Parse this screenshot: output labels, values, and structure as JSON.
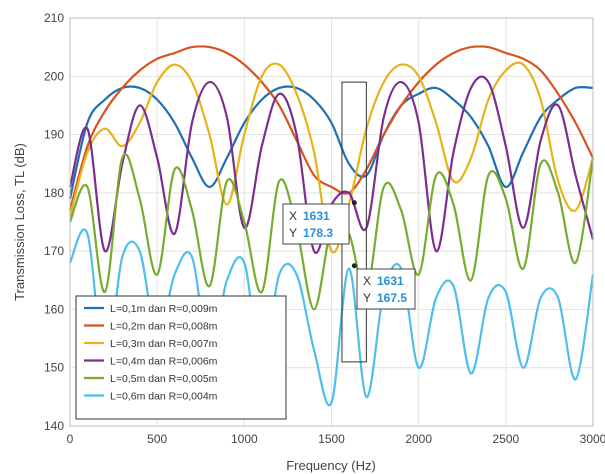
{
  "chart_data": {
    "type": "line",
    "title": "",
    "xlabel": "Frequency (Hz)",
    "ylabel": "Transmission Loss, TL (dB)",
    "xlim": [
      0,
      3000
    ],
    "ylim": [
      140,
      210
    ],
    "x_ticks": [
      0,
      500,
      1000,
      1500,
      2000,
      2500,
      3000
    ],
    "x_tick_labels": [
      "0",
      "500",
      "1000",
      "1500",
      "2000",
      "2500",
      "3000"
    ],
    "y_ticks": [
      140,
      150,
      160,
      170,
      180,
      190,
      200,
      210
    ],
    "y_tick_labels": [
      "140",
      "150",
      "160",
      "170",
      "180",
      "190",
      "200",
      "210"
    ],
    "grid": true,
    "legend_position": "bottom-left",
    "series": [
      {
        "name": "L=0,1m dan R=0,009m",
        "color": "#1f6fb4",
        "x": [
          0,
          100,
          200,
          300,
          400,
          500,
          600,
          700,
          800,
          900,
          1000,
          1100,
          1200,
          1300,
          1400,
          1500,
          1600,
          1700,
          1800,
          1900,
          2000,
          2100,
          2200,
          2300,
          2400,
          2500,
          2600,
          2700,
          2800,
          2900,
          3000
        ],
        "y": [
          179,
          192,
          196,
          198,
          198,
          196,
          192,
          186,
          181,
          186,
          192,
          196,
          198,
          198,
          196,
          192,
          185,
          183,
          190,
          195,
          197,
          198,
          196,
          193,
          188,
          181,
          187,
          193,
          196,
          198,
          198
        ]
      },
      {
        "name": "L=0,2m dan R=0,008m",
        "color": "#d9531e",
        "x": [
          0,
          100,
          200,
          300,
          400,
          500,
          600,
          700,
          800,
          900,
          1000,
          1100,
          1200,
          1300,
          1400,
          1500,
          1600,
          1700,
          1800,
          1900,
          2000,
          2100,
          2200,
          2300,
          2400,
          2500,
          2600,
          2700,
          2800,
          2900,
          3000
        ],
        "y": [
          177,
          188,
          194,
          198,
          201,
          203,
          204,
          205,
          205,
          204,
          202,
          199,
          195,
          189,
          183,
          181,
          180,
          184,
          190,
          195,
          199,
          202,
          204,
          205,
          205,
          204,
          203,
          201,
          197,
          192,
          186
        ]
      },
      {
        "name": "L=0,3m dan R=0,007m",
        "color": "#e8b21a",
        "x": [
          0,
          100,
          200,
          300,
          400,
          500,
          600,
          700,
          800,
          900,
          1000,
          1100,
          1200,
          1300,
          1400,
          1500,
          1600,
          1700,
          1800,
          1900,
          2000,
          2100,
          2200,
          2300,
          2400,
          2500,
          2600,
          2700,
          2800,
          2900,
          3000
        ],
        "y": [
          176,
          187,
          191,
          188,
          192,
          199,
          202,
          199,
          190,
          178,
          190,
          200,
          202,
          197,
          187,
          170,
          178,
          191,
          199,
          202,
          200,
          192,
          182,
          186,
          196,
          201,
          202,
          196,
          182,
          177,
          186
        ]
      },
      {
        "name": "L=0,4m dan R=0,006m",
        "color": "#7a2f8f",
        "x": [
          0,
          100,
          200,
          300,
          400,
          500,
          600,
          700,
          800,
          900,
          1000,
          1100,
          1200,
          1300,
          1400,
          1500,
          1600,
          1700,
          1800,
          1900,
          2000,
          2100,
          2200,
          2300,
          2400,
          2500,
          2600,
          2700,
          2800,
          2900,
          3000
        ],
        "y": [
          181,
          191,
          170,
          185,
          195,
          186,
          173,
          192,
          199,
          193,
          174,
          188,
          197,
          190,
          170,
          178,
          180,
          174,
          193,
          199,
          192,
          170,
          187,
          198,
          199,
          188,
          174,
          189,
          195,
          183,
          172
        ]
      },
      {
        "name": "L=0,5m dan R=0,005m",
        "color": "#77ac30",
        "x": [
          0,
          100,
          200,
          300,
          400,
          500,
          600,
          700,
          800,
          900,
          1000,
          1100,
          1200,
          1300,
          1400,
          1500,
          1600,
          1700,
          1800,
          1900,
          2000,
          2100,
          2200,
          2300,
          2400,
          2500,
          2600,
          2700,
          2800,
          2900,
          3000
        ],
        "y": [
          175,
          181,
          163,
          186,
          179,
          166,
          184,
          177,
          164,
          182,
          175,
          163,
          182,
          174,
          160,
          174,
          173,
          163,
          181,
          177,
          166,
          183,
          178,
          165,
          183,
          179,
          167,
          185,
          180,
          168,
          186
        ]
      },
      {
        "name": "L=0,6m dan R=0,004m",
        "color": "#4dbeee",
        "x": [
          0,
          100,
          200,
          300,
          400,
          500,
          600,
          700,
          800,
          900,
          1000,
          1100,
          1200,
          1300,
          1400,
          1500,
          1600,
          1700,
          1800,
          1900,
          2000,
          2100,
          2200,
          2300,
          2400,
          2500,
          2600,
          2700,
          2800,
          2900,
          3000
        ],
        "y": [
          168,
          173,
          150,
          169,
          170,
          155,
          166,
          169,
          152,
          165,
          168,
          150,
          166,
          166,
          153,
          144,
          167,
          145,
          163,
          167,
          150,
          162,
          164,
          149,
          162,
          163,
          150,
          162,
          162,
          148,
          166
        ]
      }
    ],
    "annotations": [
      {
        "x_label": "X",
        "x_value": "1631",
        "y_label": "Y",
        "y_value": "178.3",
        "point": [
          1631,
          178.3
        ]
      },
      {
        "x_label": "X",
        "x_value": "1631",
        "y_label": "Y",
        "y_value": "167.5",
        "point": [
          1631,
          167.5
        ]
      }
    ],
    "highlight_box": {
      "x_range": [
        1560,
        1700
      ],
      "y_range": [
        151,
        199
      ]
    }
  }
}
